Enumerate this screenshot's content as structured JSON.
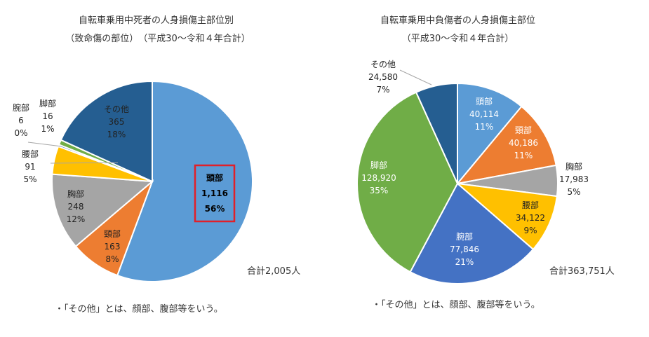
{
  "chart_data": [
    {
      "type": "pie",
      "title": "自転車乗用中死者の人身損傷主部位別",
      "subtitle": "（致命傷の部位）　（平成30～令和４年合計）",
      "total_label": "合計2,005人",
      "note": "・「その他」とは、顔部、腹部等をいう。",
      "slices": [
        {
          "name": "頭部",
          "value": "1,116",
          "percent": "56%",
          "amount": 1116,
          "color": "#5b9bd5",
          "label_color": "#000000",
          "highlight": true
        },
        {
          "name": "頸部",
          "value": "163",
          "percent": "8%",
          "amount": 163,
          "color": "#ed7d31",
          "label_color": "#222222"
        },
        {
          "name": "胸部",
          "value": "248",
          "percent": "12%",
          "amount": 248,
          "color": "#a5a5a5",
          "label_color": "#222222"
        },
        {
          "name": "腰部",
          "value": "91",
          "percent": "5%",
          "amount": 91,
          "color": "#ffc000",
          "label_color": "#222222"
        },
        {
          "name": "腕部",
          "value": "6",
          "percent": "0%",
          "amount": 6,
          "color": "#4472c4",
          "label_color": "#222222"
        },
        {
          "name": "脚部",
          "value": "16",
          "percent": "1%",
          "amount": 16,
          "color": "#70ad47",
          "label_color": "#222222"
        },
        {
          "name": "その他",
          "value": "365",
          "percent": "18%",
          "amount": 365,
          "color": "#255e91",
          "label_color": "#222222"
        }
      ]
    },
    {
      "type": "pie",
      "title": "自転車乗用中負傷者の人身損傷主部位",
      "subtitle": "（平成30～令和４年合計）",
      "total_label": "合計363,751人",
      "note": "・「その他」とは、顔部、腹部等をいう。",
      "slices": [
        {
          "name": "頭部",
          "value": "40,114",
          "percent": "11%",
          "amount": 40114,
          "color": "#5b9bd5",
          "label_color": "#ffffff"
        },
        {
          "name": "頸部",
          "value": "40,186",
          "percent": "11%",
          "amount": 40186,
          "color": "#ed7d31",
          "label_color": "#ffffff"
        },
        {
          "name": "胸部",
          "value": "17,983",
          "percent": "5%",
          "amount": 17983,
          "color": "#a5a5a5",
          "label_color": "#222222"
        },
        {
          "name": "腰部",
          "value": "34,122",
          "percent": "9%",
          "amount": 34122,
          "color": "#ffc000",
          "label_color": "#222222"
        },
        {
          "name": "腕部",
          "value": "77,846",
          "percent": "21%",
          "amount": 77846,
          "color": "#4472c4",
          "label_color": "#ffffff"
        },
        {
          "name": "脚部",
          "value": "128,920",
          "percent": "35%",
          "amount": 128920,
          "color": "#70ad47",
          "label_color": "#ffffff"
        },
        {
          "name": "その他",
          "value": "24,580",
          "percent": "7%",
          "amount": 24580,
          "color": "#255e91",
          "label_color": "#222222"
        }
      ]
    }
  ]
}
